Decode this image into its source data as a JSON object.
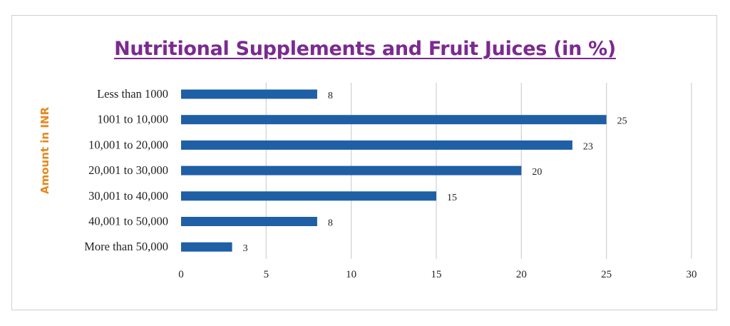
{
  "chart_data": {
    "type": "bar",
    "orientation": "horizontal",
    "title": "Nutritional Supplements and Fruit Juices (in %)",
    "xlabel": "",
    "ylabel": "Amount in INR",
    "categories": [
      "Less than 1000",
      "1001 to 10,000",
      "10,001 to 20,000",
      "20,001 to 30,000",
      "30,001 to 40,000",
      "40,001 to 50,000",
      "More than 50,000"
    ],
    "values": [
      8,
      25,
      23,
      20,
      15,
      8,
      3
    ],
    "data_labels": [
      "8",
      "25",
      "23",
      "20",
      "15",
      "8",
      "3"
    ],
    "xlim": [
      0,
      30
    ],
    "xticks": [
      "0",
      "5",
      "10",
      "15",
      "20",
      "25",
      "30"
    ],
    "grid": true,
    "legend": "none",
    "colors": {
      "bar": "#1f5fa6",
      "title": "#7b2a91",
      "ylabel": "#e8871e",
      "grid": "#d3d3d3",
      "text": "#222222"
    }
  }
}
